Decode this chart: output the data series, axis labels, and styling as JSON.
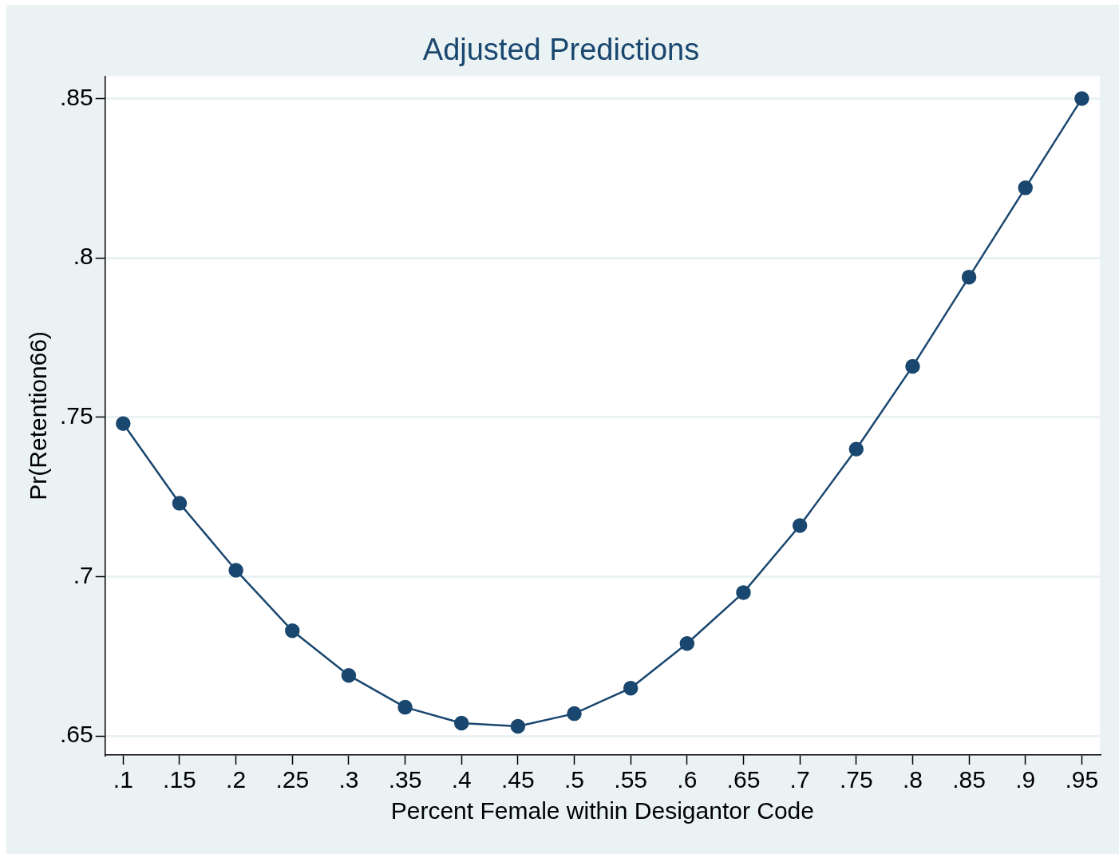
{
  "chart_data": {
    "type": "line",
    "title": "Adjusted Predictions",
    "xlabel": "Percent Female within Desigantor Code",
    "ylabel": "Pr(Retention66)",
    "x": [
      0.1,
      0.15,
      0.2,
      0.25,
      0.3,
      0.35,
      0.4,
      0.45,
      0.5,
      0.55,
      0.6,
      0.65,
      0.7,
      0.75,
      0.8,
      0.85,
      0.9,
      0.95
    ],
    "series": [
      {
        "color": "#1a476f",
        "values": [
          0.748,
          0.723,
          0.702,
          0.683,
          0.669,
          0.659,
          0.654,
          0.653,
          0.657,
          0.665,
          0.679,
          0.695,
          0.716,
          0.74,
          0.766,
          0.794,
          0.822,
          0.85
        ]
      }
    ],
    "xlim": [
      0.084,
      0.966
    ],
    "xticks": [
      {
        "value": 0.1,
        "label": ".1"
      },
      {
        "value": 0.15,
        "label": ".15"
      },
      {
        "value": 0.2,
        "label": ".2"
      },
      {
        "value": 0.25,
        "label": ".25"
      },
      {
        "value": 0.3,
        "label": ".3"
      },
      {
        "value": 0.35,
        "label": ".35"
      },
      {
        "value": 0.4,
        "label": ".4"
      },
      {
        "value": 0.45,
        "label": ".45"
      },
      {
        "value": 0.5,
        "label": ".5"
      },
      {
        "value": 0.55,
        "label": ".55"
      },
      {
        "value": 0.6,
        "label": ".6"
      },
      {
        "value": 0.65,
        "label": ".65"
      },
      {
        "value": 0.7,
        "label": ".7"
      },
      {
        "value": 0.75,
        "label": ".75"
      },
      {
        "value": 0.8,
        "label": ".8"
      },
      {
        "value": 0.85,
        "label": ".85"
      },
      {
        "value": 0.9,
        "label": ".9"
      },
      {
        "value": 0.95,
        "label": ".95"
      }
    ],
    "ylim": [
      0.644,
      0.857
    ],
    "yticks": [
      {
        "value": 0.65,
        "label": ".65"
      },
      {
        "value": 0.7,
        "label": ".7"
      },
      {
        "value": 0.75,
        "label": ".75"
      },
      {
        "value": 0.8,
        "label": ".8"
      },
      {
        "value": 0.85,
        "label": ".85"
      }
    ],
    "grid": "y",
    "marker": "circle",
    "line_style": "solid"
  }
}
